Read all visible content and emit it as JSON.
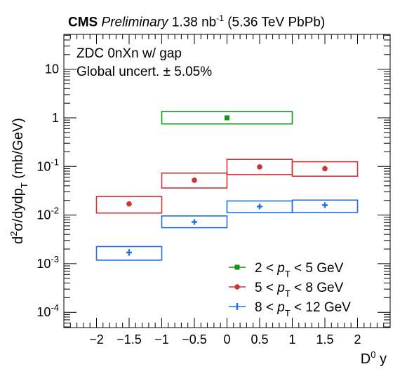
{
  "header": {
    "experiment": "CMS",
    "status": "Preliminary",
    "lumi_value": "1.38",
    "lumi_unit": "nb",
    "lumi_exp": "-1",
    "energy": "(5.36 TeV PbPb)"
  },
  "annotations": [
    "ZDC 0nXn w/ gap",
    "Global uncert. ± 5.05%"
  ],
  "chart_data": {
    "type": "scatter",
    "xlabel": "D⁰ y",
    "ylabel": "d²σ/dydp_T (mb/GeV)",
    "xlim": [
      -2.5,
      2.5
    ],
    "ylim": [
      5e-05,
      50
    ],
    "log_y": true,
    "x_ticks": [
      -2,
      -1.5,
      -1,
      -0.5,
      0,
      0.5,
      1,
      1.5,
      2
    ],
    "x_tick_labels": [
      "−2",
      "−1.5",
      "−1",
      "−0.5",
      "0",
      "0.5",
      "1",
      "1.5",
      "2"
    ],
    "y_ticks": [
      0.0001,
      0.001,
      0.01,
      0.1,
      1,
      10
    ],
    "legend_position": "bottom-right",
    "series": [
      {
        "name": "2 < p_T < 5 GeV",
        "label_parts": [
          "2 <",
          "p",
          "T",
          "< 5 GeV"
        ],
        "color": "#109618",
        "marker": "square",
        "points": [
          {
            "x": 0,
            "xlo": -1,
            "xhi": 1,
            "y": 1.0,
            "sys_lo": 0.75,
            "sys_hi": 1.35,
            "stat_lo": 0.96,
            "stat_hi": 1.04
          }
        ]
      },
      {
        "name": "5 < p_T < 8 GeV",
        "label_parts": [
          "5 <",
          "p",
          "T",
          "< 8 GeV"
        ],
        "color": "#cc3333",
        "marker": "circle",
        "points": [
          {
            "x": -1.5,
            "xlo": -2,
            "xhi": -1,
            "y": 0.017,
            "sys_lo": 0.011,
            "sys_hi": 0.024,
            "stat_lo": 0.0163,
            "stat_hi": 0.0177
          },
          {
            "x": -0.5,
            "xlo": -1,
            "xhi": 0,
            "y": 0.052,
            "sys_lo": 0.036,
            "sys_hi": 0.073,
            "stat_lo": 0.047,
            "stat_hi": 0.057
          },
          {
            "x": 0.5,
            "xlo": 0,
            "xhi": 1,
            "y": 0.098,
            "sys_lo": 0.068,
            "sys_hi": 0.14,
            "stat_lo": 0.094,
            "stat_hi": 0.102
          },
          {
            "x": 1.5,
            "xlo": 1,
            "xhi": 2,
            "y": 0.09,
            "sys_lo": 0.063,
            "sys_hi": 0.125,
            "stat_lo": 0.086,
            "stat_hi": 0.094
          }
        ]
      },
      {
        "name": "8 < p_T < 12 GeV",
        "label_parts": [
          "8 <",
          "p",
          "T",
          "< 12 GeV"
        ],
        "color": "#1f6fdc",
        "marker": "cross",
        "points": [
          {
            "x": -1.5,
            "xlo": -2,
            "xhi": -1,
            "y": 0.0017,
            "sys_lo": 0.00118,
            "sys_hi": 0.00225,
            "stat_lo": 0.00145,
            "stat_hi": 0.002
          },
          {
            "x": -0.5,
            "xlo": -1,
            "xhi": 0,
            "y": 0.0072,
            "sys_lo": 0.0055,
            "sys_hi": 0.0096,
            "stat_lo": 0.0064,
            "stat_hi": 0.0081
          },
          {
            "x": 0.5,
            "xlo": 0,
            "xhi": 1,
            "y": 0.015,
            "sys_lo": 0.0112,
            "sys_hi": 0.0195,
            "stat_lo": 0.0138,
            "stat_hi": 0.0163
          },
          {
            "x": 1.5,
            "xlo": 1,
            "xhi": 2,
            "y": 0.016,
            "sys_lo": 0.0113,
            "sys_hi": 0.0203,
            "stat_lo": 0.0147,
            "stat_hi": 0.0174
          }
        ]
      }
    ]
  }
}
